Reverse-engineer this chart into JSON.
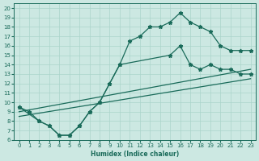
{
  "xlabel": "Humidex (Indice chaleur)",
  "background_color": "#cce8e2",
  "line_color": "#1a6b5a",
  "grid_color": "#aad4ca",
  "xlim": [
    -0.5,
    23.5
  ],
  "ylim": [
    6,
    20.5
  ],
  "xticks": [
    0,
    1,
    2,
    3,
    4,
    5,
    6,
    7,
    8,
    9,
    10,
    11,
    12,
    13,
    14,
    15,
    16,
    17,
    18,
    19,
    20,
    21,
    22,
    23
  ],
  "yticks": [
    6,
    7,
    8,
    9,
    10,
    11,
    12,
    13,
    14,
    15,
    16,
    17,
    18,
    19,
    20
  ],
  "main_x": [
    0,
    1,
    2,
    3,
    4,
    5,
    6,
    7,
    8,
    9,
    10,
    11,
    12,
    13,
    14,
    15,
    16,
    17,
    18,
    19,
    20,
    21,
    22,
    23
  ],
  "main_y": [
    9.5,
    9.0,
    8.0,
    7.5,
    6.5,
    6.5,
    7.5,
    9.0,
    10.0,
    12.0,
    14.0,
    16.5,
    17.0,
    18.0,
    18.0,
    18.5,
    19.5,
    18.5,
    18.0,
    17.5,
    16.0,
    15.5,
    15.5,
    15.5
  ],
  "line2_x": [
    0,
    2,
    3,
    4,
    5,
    6,
    7,
    8,
    9,
    10,
    15,
    16,
    17,
    18,
    19,
    20,
    21,
    22,
    23
  ],
  "line2_y": [
    9.5,
    8.0,
    7.5,
    6.5,
    6.5,
    7.5,
    9.0,
    10.0,
    12.0,
    14.0,
    15.0,
    16.0,
    14.0,
    13.5,
    14.0,
    13.5,
    13.5,
    13.0,
    13.0
  ],
  "line3_x": [
    0,
    23
  ],
  "line3_y": [
    9.0,
    13.5
  ],
  "line4_x": [
    0,
    23
  ],
  "line4_y": [
    8.5,
    12.5
  ]
}
